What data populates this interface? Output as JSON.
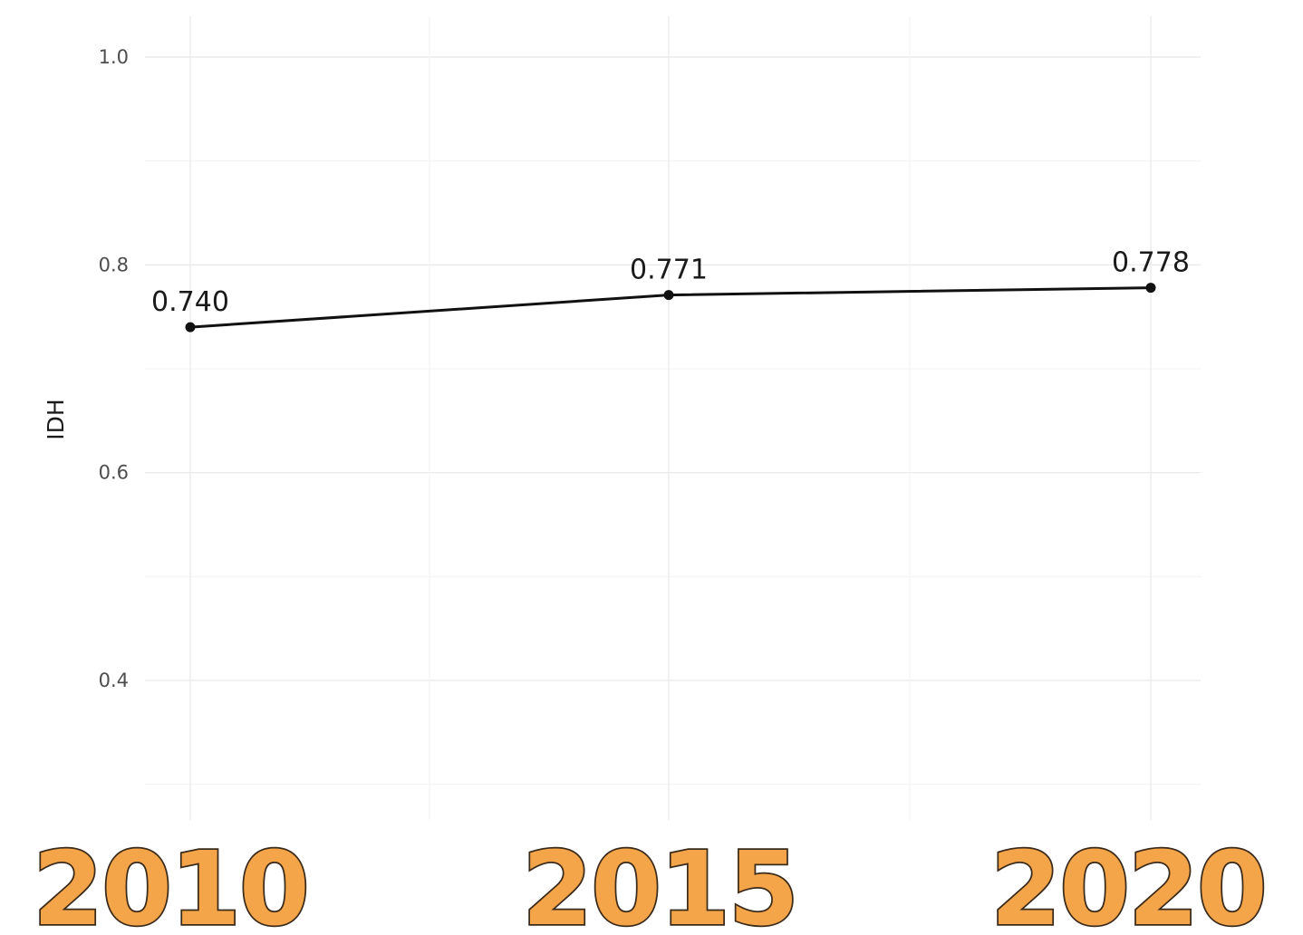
{
  "chart_data": {
    "type": "line",
    "title": "",
    "xlabel": "",
    "ylabel": "IDH",
    "categories": [
      "2010",
      "2015",
      "2020"
    ],
    "series": [
      {
        "values": [
          0.74,
          0.771,
          0.778
        ]
      }
    ],
    "data_labels": [
      "0.740",
      "0.771",
      "0.778"
    ],
    "y_ticks": [
      "0.4",
      "0.6",
      "0.8",
      "1.0"
    ],
    "ylim": [
      0.3,
      1.0
    ],
    "grid": true,
    "legend": "none",
    "colors": {
      "line": "#111111",
      "x_tick_fill": "#f4a54a",
      "x_tick_outline": "#3a2a1a"
    }
  }
}
